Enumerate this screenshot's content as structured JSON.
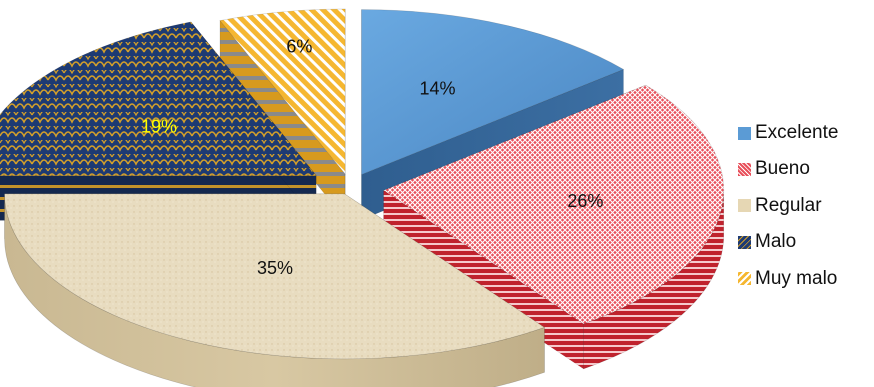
{
  "chart_data": {
    "type": "pie",
    "style": "3d-exploded",
    "categories": [
      "Excelente",
      "Bueno",
      "Regular",
      "Malo",
      "Muy malo"
    ],
    "values": [
      14,
      26,
      35,
      19,
      6
    ],
    "labels": [
      "14%",
      "26%",
      "35%",
      "19%",
      "6%"
    ],
    "unit": "%",
    "legend_position": "right",
    "colors": [
      "#5b9bd5",
      "#e8505b",
      "#e6d7b4",
      "#2e4a80",
      "#f5b731"
    ]
  },
  "legend": {
    "items": [
      {
        "label": "Excelente",
        "color": "#5b9bd5"
      },
      {
        "label": "Bueno",
        "color": "#e8505b"
      },
      {
        "label": "Regular",
        "color": "#e6d7b4"
      },
      {
        "label": "Malo",
        "color": "#2e4a80"
      },
      {
        "label": "Muy malo",
        "color": "#f5b731"
      }
    ]
  }
}
